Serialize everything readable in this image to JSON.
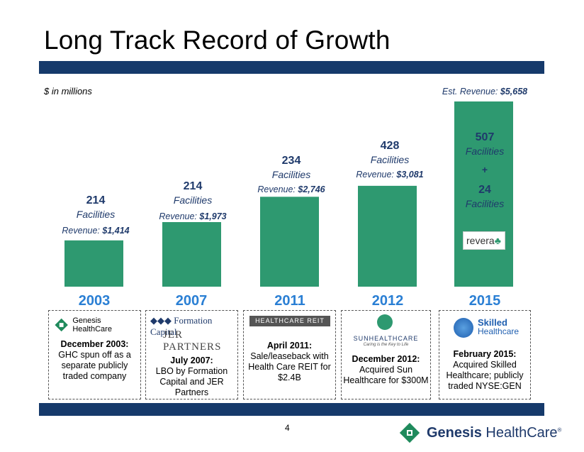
{
  "title": "Long Track Record of Growth",
  "units_note": "$ in millions",
  "chart_data": {
    "type": "bar",
    "categories": [
      "2003",
      "2007",
      "2011",
      "2012",
      "2015"
    ],
    "values": [
      1414,
      1973,
      2746,
      3081,
      5658
    ],
    "ylim": [
      0,
      5658
    ],
    "facilities": [
      "214",
      "214",
      "234",
      "428",
      "507"
    ],
    "facility_word": "Facilities",
    "revenue_prefix": "Revenue: ",
    "revenue_labels": [
      "$1,414",
      "$1,973",
      "$2,746",
      "$3,081"
    ],
    "est_revenue_prefix": "Est. Revenue: ",
    "est_revenue_value": "$5,658",
    "plus": "+",
    "extra_facilities": "24",
    "bar_color": "#2e9970"
  },
  "cards": [
    {
      "logo": "Genesis HealthCare",
      "heading": "December 2003:",
      "text": "GHC spun off as a separate publicly traded company"
    },
    {
      "logo1": "Formation Capital",
      "logo2": "JER PARTNERS",
      "heading": "July 2007:",
      "text": "LBO by Formation Capital and JER Partners"
    },
    {
      "logo": "HEALTHCARE REIT",
      "heading": "April 2011:",
      "text": "Sale/leaseback with Health Care REIT for $2.4B"
    },
    {
      "logo": "SUNHEALTHCARE",
      "logo_sub": "Caring is the Key to Life",
      "heading": "December 2012:",
      "text": "Acquired Sun Healthcare for $300M"
    },
    {
      "logo1": "Skilled",
      "logo2": "Healthcare",
      "heading": "February 2015:",
      "text": "Acquired Skilled Healthcare; publicly traded NYSE:GEN"
    }
  ],
  "revera_logo": "revera",
  "page_number": "4",
  "footer_logo": {
    "bold": "Genesis",
    "rest": " HealthCare"
  }
}
